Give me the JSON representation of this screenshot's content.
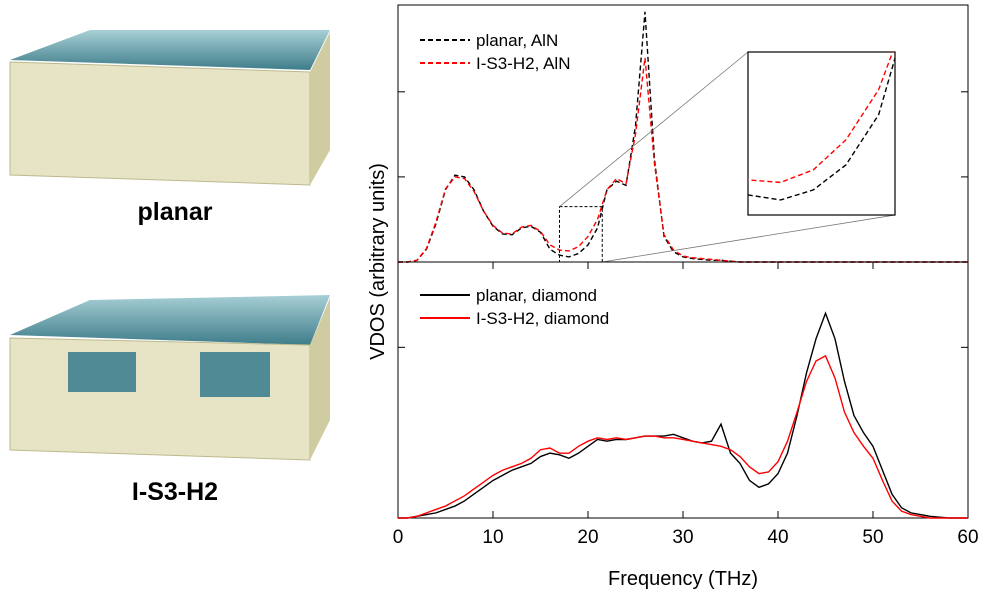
{
  "panels": {
    "labels": [
      "planar",
      "I-S3-H2"
    ]
  },
  "chart_data": [
    {
      "type": "line",
      "xlim": [
        0,
        60
      ],
      "ylim": [
        0,
        3.02
      ],
      "yticks": [
        1,
        2
      ],
      "legend": "upper left",
      "linestyle": "dashed",
      "inset": {
        "xlim": [
          17,
          21.5
        ],
        "ylim": [
          0,
          0.65
        ]
      },
      "x": [
        0,
        1,
        2,
        3,
        4,
        5,
        6,
        7,
        8,
        9,
        10,
        11,
        12,
        13,
        14,
        15,
        16,
        17,
        18,
        19,
        20,
        21,
        22,
        23,
        24,
        25,
        26,
        27,
        28,
        29,
        30,
        31,
        32,
        33,
        34,
        35,
        36,
        37,
        38,
        39,
        40,
        41,
        42,
        43,
        44,
        45,
        46,
        47,
        48,
        49,
        50,
        51,
        52,
        53,
        54,
        55,
        56,
        57,
        58,
        59,
        60
      ],
      "series": [
        {
          "name": "planar, AlN",
          "color": "#000000",
          "values": [
            0,
            0,
            0.02,
            0.15,
            0.45,
            0.85,
            1.02,
            1.0,
            0.85,
            0.6,
            0.42,
            0.33,
            0.32,
            0.4,
            0.42,
            0.35,
            0.15,
            0.08,
            0.06,
            0.1,
            0.2,
            0.4,
            0.85,
            0.95,
            0.9,
            1.6,
            2.94,
            1.2,
            0.3,
            0.12,
            0.06,
            0.04,
            0.03,
            0.02,
            0.02,
            0.01,
            0,
            0,
            0,
            0,
            0,
            0,
            0,
            0,
            0,
            0,
            0,
            0,
            0,
            0,
            0,
            0,
            0,
            0,
            0,
            0,
            0,
            0,
            0,
            0,
            0
          ]
        },
        {
          "name": "I-S3-H2, AlN",
          "color": "#ff0000",
          "values": [
            0,
            0,
            0.02,
            0.16,
            0.47,
            0.86,
            1.0,
            0.98,
            0.83,
            0.6,
            0.43,
            0.34,
            0.33,
            0.41,
            0.43,
            0.36,
            0.2,
            0.14,
            0.13,
            0.18,
            0.3,
            0.5,
            0.85,
            0.98,
            0.92,
            1.5,
            2.4,
            1.15,
            0.32,
            0.14,
            0.07,
            0.05,
            0.04,
            0.03,
            0.02,
            0.01,
            0,
            0,
            0,
            0,
            0,
            0,
            0,
            0,
            0,
            0,
            0,
            0,
            0,
            0,
            0,
            0,
            0,
            0,
            0,
            0,
            0,
            0,
            0,
            0,
            0
          ]
        }
      ]
    },
    {
      "type": "line",
      "x_label": "Frequency (THz)",
      "y_label": "VDOS (arbitrary units)",
      "xlim": [
        0,
        60
      ],
      "xticks": [
        0,
        10,
        20,
        30,
        40,
        50,
        60
      ],
      "ylim": [
        0,
        1.5
      ],
      "yticks": [
        1
      ],
      "legend": "upper left",
      "linestyle": "solid",
      "x": [
        0,
        1,
        2,
        3,
        4,
        5,
        6,
        7,
        8,
        9,
        10,
        11,
        12,
        13,
        14,
        15,
        16,
        17,
        18,
        19,
        20,
        21,
        22,
        23,
        24,
        25,
        26,
        27,
        28,
        29,
        30,
        31,
        32,
        33,
        34,
        35,
        36,
        37,
        38,
        39,
        40,
        41,
        42,
        43,
        44,
        45,
        46,
        47,
        48,
        49,
        50,
        51,
        52,
        53,
        54,
        55,
        56,
        57,
        58,
        59,
        60
      ],
      "series": [
        {
          "name": "planar, diamond",
          "color": "#000000",
          "values": [
            0,
            0,
            0.01,
            0.02,
            0.03,
            0.05,
            0.07,
            0.1,
            0.14,
            0.18,
            0.22,
            0.25,
            0.28,
            0.3,
            0.32,
            0.36,
            0.38,
            0.37,
            0.35,
            0.38,
            0.42,
            0.46,
            0.45,
            0.46,
            0.46,
            0.47,
            0.48,
            0.48,
            0.48,
            0.49,
            0.47,
            0.45,
            0.44,
            0.45,
            0.55,
            0.38,
            0.32,
            0.22,
            0.18,
            0.2,
            0.26,
            0.38,
            0.6,
            0.85,
            1.05,
            1.2,
            1.05,
            0.8,
            0.6,
            0.5,
            0.42,
            0.28,
            0.14,
            0.06,
            0.03,
            0.02,
            0.01,
            0.005,
            0,
            0,
            0
          ]
        },
        {
          "name": "I-S3-H2, diamond",
          "color": "#ff0000",
          "values": [
            0,
            0,
            0.01,
            0.03,
            0.05,
            0.07,
            0.1,
            0.13,
            0.17,
            0.21,
            0.25,
            0.28,
            0.3,
            0.32,
            0.35,
            0.4,
            0.41,
            0.38,
            0.38,
            0.42,
            0.45,
            0.47,
            0.46,
            0.47,
            0.46,
            0.47,
            0.48,
            0.48,
            0.47,
            0.47,
            0.46,
            0.45,
            0.44,
            0.43,
            0.42,
            0.4,
            0.36,
            0.3,
            0.26,
            0.27,
            0.33,
            0.45,
            0.62,
            0.8,
            0.92,
            0.95,
            0.82,
            0.62,
            0.5,
            0.42,
            0.35,
            0.22,
            0.1,
            0.04,
            0.02,
            0.01,
            0,
            0,
            0,
            0,
            0
          ]
        }
      ]
    }
  ]
}
